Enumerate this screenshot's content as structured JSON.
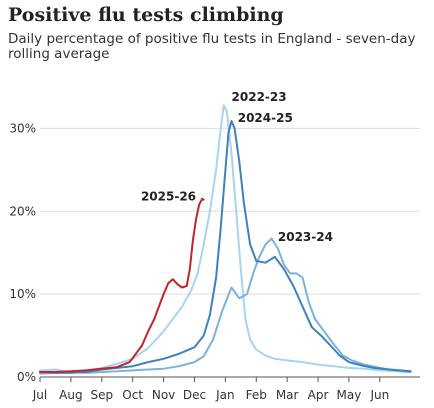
{
  "title": "Positive flu tests climbing",
  "subtitle": "Daily percentage of positive flu tests in England - seven-day rolling average",
  "chart_data": {
    "type": "line",
    "x_ticks": [
      "Jul",
      "Aug",
      "Sep",
      "Oct",
      "Nov",
      "Dec",
      "Jan",
      "Feb",
      "Mar",
      "Apr",
      "May",
      "Jun"
    ],
    "y_ticks": [
      {
        "value": 0,
        "label": "0%"
      },
      {
        "value": 10,
        "label": "10%"
      },
      {
        "value": 20,
        "label": "20%"
      },
      {
        "value": 30,
        "label": "30%"
      }
    ],
    "ylim": [
      0,
      35
    ],
    "xlim": [
      0,
      12.3
    ],
    "grid": true,
    "series": [
      {
        "name": "2022-23",
        "color": "#a8d4ef",
        "points": [
          [
            0,
            0.8
          ],
          [
            0.5,
            0.9
          ],
          [
            1,
            0.6
          ],
          [
            1.5,
            0.8
          ],
          [
            2,
            1.1
          ],
          [
            2.5,
            1.6
          ],
          [
            3,
            2.2
          ],
          [
            3.5,
            3.5
          ],
          [
            4,
            5.5
          ],
          [
            4.3,
            7
          ],
          [
            4.6,
            8.5
          ],
          [
            4.9,
            10.5
          ],
          [
            5.1,
            12.5
          ],
          [
            5.3,
            16
          ],
          [
            5.5,
            20
          ],
          [
            5.7,
            25
          ],
          [
            5.85,
            30
          ],
          [
            5.95,
            32.8
          ],
          [
            6.05,
            32
          ],
          [
            6.2,
            27
          ],
          [
            6.35,
            20
          ],
          [
            6.5,
            13
          ],
          [
            6.65,
            7
          ],
          [
            6.8,
            4.5
          ],
          [
            7,
            3.3
          ],
          [
            7.3,
            2.6
          ],
          [
            7.6,
            2.2
          ],
          [
            8,
            2
          ],
          [
            8.5,
            1.8
          ],
          [
            9,
            1.5
          ],
          [
            9.5,
            1.3
          ],
          [
            10,
            1.1
          ],
          [
            10.5,
            1
          ],
          [
            11,
            0.8
          ],
          [
            11.5,
            0.7
          ],
          [
            12,
            0.6
          ]
        ]
      },
      {
        "name": "2023-24",
        "color": "#7ab3dd",
        "points": [
          [
            0,
            0.4
          ],
          [
            0.5,
            0.5
          ],
          [
            1,
            0.6
          ],
          [
            1.5,
            0.5
          ],
          [
            2,
            0.6
          ],
          [
            2.5,
            0.7
          ],
          [
            3,
            0.8
          ],
          [
            3.5,
            0.9
          ],
          [
            4,
            1.0
          ],
          [
            4.5,
            1.3
          ],
          [
            5,
            1.8
          ],
          [
            5.3,
            2.5
          ],
          [
            5.6,
            4.5
          ],
          [
            5.9,
            8
          ],
          [
            6.2,
            10.8
          ],
          [
            6.45,
            9.5
          ],
          [
            6.7,
            10
          ],
          [
            6.9,
            12.5
          ],
          [
            7.1,
            14.5
          ],
          [
            7.3,
            16
          ],
          [
            7.5,
            16.7
          ],
          [
            7.7,
            15.5
          ],
          [
            7.9,
            13.5
          ],
          [
            8.1,
            12.5
          ],
          [
            8.3,
            12.5
          ],
          [
            8.5,
            12
          ],
          [
            8.7,
            9
          ],
          [
            8.9,
            7
          ],
          [
            9.2,
            5.5
          ],
          [
            9.5,
            4
          ],
          [
            9.8,
            2.6
          ],
          [
            10.1,
            2
          ],
          [
            10.5,
            1.5
          ],
          [
            11,
            1.1
          ],
          [
            11.5,
            0.8
          ],
          [
            12,
            0.6
          ]
        ]
      },
      {
        "name": "2024-25",
        "color": "#3f81bc",
        "points": [
          [
            0,
            0.6
          ],
          [
            0.5,
            0.5
          ],
          [
            1,
            0.5
          ],
          [
            1.5,
            0.6
          ],
          [
            2,
            0.9
          ],
          [
            2.5,
            1.1
          ],
          [
            3,
            1.3
          ],
          [
            3.5,
            1.8
          ],
          [
            4,
            2.2
          ],
          [
            4.5,
            2.8
          ],
          [
            5,
            3.6
          ],
          [
            5.3,
            5
          ],
          [
            5.5,
            7.5
          ],
          [
            5.7,
            12
          ],
          [
            5.85,
            18
          ],
          [
            6,
            25
          ],
          [
            6.1,
            29.5
          ],
          [
            6.2,
            30.9
          ],
          [
            6.3,
            30
          ],
          [
            6.45,
            26
          ],
          [
            6.6,
            21
          ],
          [
            6.8,
            16
          ],
          [
            7,
            14
          ],
          [
            7.3,
            13.8
          ],
          [
            7.6,
            14.5
          ],
          [
            7.9,
            13
          ],
          [
            8.2,
            11
          ],
          [
            8.5,
            8.5
          ],
          [
            8.8,
            6
          ],
          [
            9.1,
            5
          ],
          [
            9.4,
            3.8
          ],
          [
            9.7,
            2.6
          ],
          [
            10,
            1.8
          ],
          [
            10.4,
            1.4
          ],
          [
            10.8,
            1.1
          ],
          [
            11.3,
            0.9
          ],
          [
            12,
            0.7
          ]
        ]
      },
      {
        "name": "2025-26",
        "color": "#c2252c",
        "points": [
          [
            0,
            0.6
          ],
          [
            0.5,
            0.6
          ],
          [
            1,
            0.7
          ],
          [
            1.5,
            0.8
          ],
          [
            2,
            1.0
          ],
          [
            2.5,
            1.2
          ],
          [
            2.9,
            1.8
          ],
          [
            3.1,
            2.8
          ],
          [
            3.3,
            3.8
          ],
          [
            3.5,
            5.5
          ],
          [
            3.7,
            7
          ],
          [
            3.85,
            8.5
          ],
          [
            4,
            10
          ],
          [
            4.15,
            11.3
          ],
          [
            4.3,
            11.8
          ],
          [
            4.45,
            11.2
          ],
          [
            4.6,
            10.8
          ],
          [
            4.75,
            11
          ],
          [
            4.85,
            13
          ],
          [
            4.95,
            16.5
          ],
          [
            5.05,
            19
          ],
          [
            5.15,
            20.8
          ],
          [
            5.25,
            21.5
          ],
          [
            5.3,
            21.4
          ]
        ]
      }
    ],
    "labels": [
      {
        "series": "2022-23",
        "text": "2022-23",
        "x": 6.2,
        "y": 33.3,
        "anchor": "start"
      },
      {
        "series": "2024-25",
        "text": "2024-25",
        "x": 6.4,
        "y": 30.8,
        "anchor": "start"
      },
      {
        "series": "2023-24",
        "text": "2023-24",
        "x": 7.7,
        "y": 16.4,
        "anchor": "start"
      },
      {
        "series": "2025-26",
        "text": "2025-26",
        "x": 5.05,
        "y": 21.3,
        "anchor": "end"
      }
    ]
  }
}
